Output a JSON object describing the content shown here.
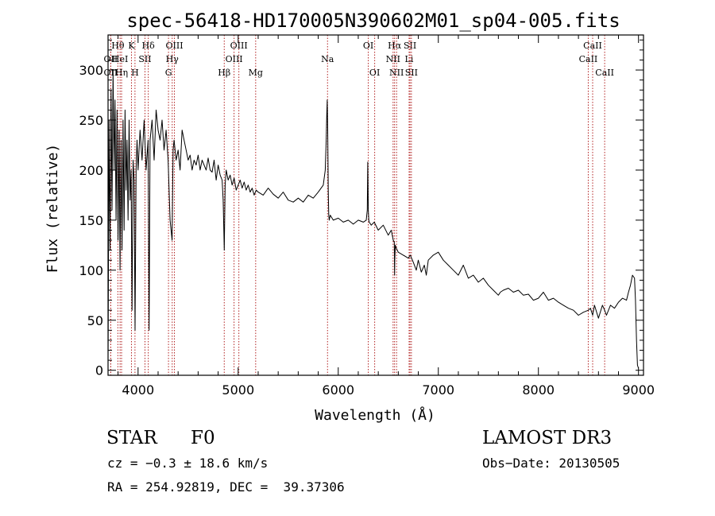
{
  "chart_data": {
    "type": "line",
    "title": "spec-56418-HD170005N390602M01_sp04-005.fits",
    "xlabel": "Wavelength (Å)",
    "ylabel": "Flux (relative)",
    "xlim": [
      3700,
      9050
    ],
    "ylim": [
      -5,
      335
    ],
    "xticks": [
      4000,
      5000,
      6000,
      7000,
      8000,
      9000
    ],
    "yticks": [
      0,
      50,
      100,
      150,
      200,
      250,
      300
    ],
    "xtick_labels": [
      "4000",
      "5000",
      "6000",
      "7000",
      "8000",
      "9000"
    ],
    "ytick_labels": [
      "0",
      "50",
      "100",
      "150",
      "200",
      "250",
      "300"
    ],
    "grid": false,
    "series": [
      {
        "name": "flux",
        "color": "#000000",
        "x": [
          3700,
          3710,
          3720,
          3730,
          3740,
          3750,
          3760,
          3770,
          3780,
          3790,
          3800,
          3810,
          3820,
          3830,
          3840,
          3850,
          3860,
          3870,
          3880,
          3890,
          3900,
          3910,
          3920,
          3930,
          3940,
          3950,
          3960,
          3970,
          3980,
          3990,
          4000,
          4020,
          4040,
          4060,
          4080,
          4100,
          4110,
          4120,
          4140,
          4160,
          4180,
          4200,
          4220,
          4240,
          4260,
          4280,
          4300,
          4320,
          4340,
          4350,
          4360,
          4380,
          4400,
          4420,
          4440,
          4460,
          4480,
          4500,
          4520,
          4540,
          4560,
          4580,
          4600,
          4620,
          4640,
          4660,
          4680,
          4700,
          4720,
          4740,
          4760,
          4780,
          4800,
          4820,
          4840,
          4850,
          4861,
          4870,
          4880,
          4900,
          4920,
          4940,
          4960,
          4980,
          5000,
          5020,
          5040,
          5060,
          5080,
          5100,
          5120,
          5140,
          5160,
          5180,
          5200,
          5250,
          5300,
          5350,
          5400,
          5450,
          5500,
          5550,
          5600,
          5650,
          5700,
          5750,
          5800,
          5850,
          5870,
          5880,
          5885,
          5890,
          5895,
          5900,
          5905,
          5910,
          5920,
          5950,
          6000,
          6050,
          6100,
          6150,
          6200,
          6250,
          6280,
          6290,
          6295,
          6300,
          6305,
          6310,
          6330,
          6360,
          6400,
          6450,
          6500,
          6530,
          6550,
          6560,
          6563,
          6565,
          6570,
          6580,
          6600,
          6650,
          6700,
          6720,
          6750,
          6780,
          6800,
          6830,
          6860,
          6880,
          6900,
          6950,
          7000,
          7050,
          7100,
          7150,
          7200,
          7250,
          7300,
          7350,
          7400,
          7450,
          7500,
          7550,
          7600,
          7620,
          7650,
          7700,
          7750,
          7800,
          7850,
          7900,
          7950,
          8000,
          8050,
          8100,
          8150,
          8200,
          8250,
          8300,
          8350,
          8400,
          8450,
          8498,
          8520,
          8542,
          8560,
          8600,
          8640,
          8662,
          8680,
          8720,
          8760,
          8800,
          8840,
          8880,
          8900,
          8920,
          8940,
          8960,
          8970,
          8980,
          8990,
          9000
        ],
        "values": [
          10,
          250,
          120,
          280,
          160,
          300,
          200,
          270,
          150,
          260,
          130,
          240,
          100,
          230,
          120,
          250,
          140,
          260,
          180,
          230,
          150,
          250,
          170,
          200,
          60,
          210,
          190,
          40,
          200,
          230,
          200,
          240,
          210,
          250,
          200,
          230,
          40,
          230,
          250,
          210,
          260,
          240,
          230,
          250,
          220,
          240,
          210,
          150,
          130,
          220,
          230,
          210,
          220,
          200,
          240,
          230,
          220,
          210,
          215,
          200,
          210,
          205,
          215,
          200,
          210,
          205,
          200,
          212,
          200,
          198,
          210,
          190,
          205,
          195,
          190,
          170,
          120,
          185,
          200,
          190,
          195,
          185,
          192,
          180,
          185,
          190,
          182,
          188,
          180,
          185,
          178,
          182,
          175,
          180,
          178,
          175,
          182,
          176,
          172,
          178,
          170,
          168,
          172,
          168,
          175,
          172,
          178,
          185,
          200,
          230,
          255,
          270,
          240,
          180,
          155,
          150,
          155,
          150,
          152,
          148,
          150,
          146,
          150,
          148,
          150,
          160,
          208,
          160,
          150,
          148,
          145,
          148,
          140,
          145,
          135,
          140,
          130,
          128,
          95,
          110,
          125,
          122,
          118,
          115,
          112,
          115,
          108,
          100,
          110,
          98,
          105,
          95,
          110,
          115,
          118,
          110,
          105,
          100,
          95,
          105,
          92,
          95,
          88,
          92,
          85,
          80,
          75,
          78,
          80,
          82,
          78,
          80,
          75,
          76,
          70,
          72,
          78,
          70,
          72,
          68,
          65,
          62,
          60,
          55,
          58,
          60,
          62,
          55,
          65,
          52,
          65,
          60,
          55,
          65,
          62,
          68,
          72,
          70,
          78,
          85,
          95,
          92,
          70,
          30,
          5,
          2
        ]
      }
    ],
    "lines": [
      {
        "label": "Hθ",
        "x": 3798,
        "row": 1
      },
      {
        "label": "OII",
        "x": 3727,
        "row": 2
      },
      {
        "label": "HeI",
        "x": 3820,
        "row": 2
      },
      {
        "label": "OII",
        "x": 3727,
        "row": 3
      },
      {
        "label": "Hη",
        "x": 3835,
        "row": 3
      },
      {
        "label": "K",
        "x": 3934,
        "row": 1
      },
      {
        "label": "H",
        "x": 3969,
        "row": 3
      },
      {
        "label": "SII",
        "x": 4069,
        "row": 2
      },
      {
        "label": "Hδ",
        "x": 4102,
        "row": 1
      },
      {
        "label": "OIII",
        "x": 4363,
        "row": 1
      },
      {
        "label": "Hγ",
        "x": 4341,
        "row": 2
      },
      {
        "label": "G",
        "x": 4304,
        "row": 3
      },
      {
        "label": "Hβ",
        "x": 4861,
        "row": 3
      },
      {
        "label": "OIII",
        "x": 5007,
        "row": 1
      },
      {
        "label": "OIII",
        "x": 4959,
        "row": 2
      },
      {
        "label": "Mg",
        "x": 5175,
        "row": 3
      },
      {
        "label": "Na",
        "x": 5893,
        "row": 2
      },
      {
        "label": "OI",
        "x": 6300,
        "row": 1
      },
      {
        "label": "OI",
        "x": 6364,
        "row": 3
      },
      {
        "label": "Hα",
        "x": 6563,
        "row": 1
      },
      {
        "label": "SII",
        "x": 6717,
        "row": 1
      },
      {
        "label": "NII",
        "x": 6548,
        "row": 2
      },
      {
        "label": "Li",
        "x": 6708,
        "row": 2
      },
      {
        "label": "NII",
        "x": 6583,
        "row": 3
      },
      {
        "label": "SII",
        "x": 6731,
        "row": 3
      },
      {
        "label": "CaII",
        "x": 8542,
        "row": 1
      },
      {
        "label": "CaII",
        "x": 8498,
        "row": 2
      },
      {
        "label": "CaII",
        "x": 8662,
        "row": 3
      }
    ],
    "line_color": "#b22222"
  },
  "info": {
    "class": "STAR",
    "subclass": "F0",
    "survey": "LAMOST DR3",
    "cz": "cz = −0.3 ± 18.6 km/s",
    "obsdate": "Obs−Date: 20130505",
    "radec": "RA = 254.92819, DEC =  39.37306"
  }
}
